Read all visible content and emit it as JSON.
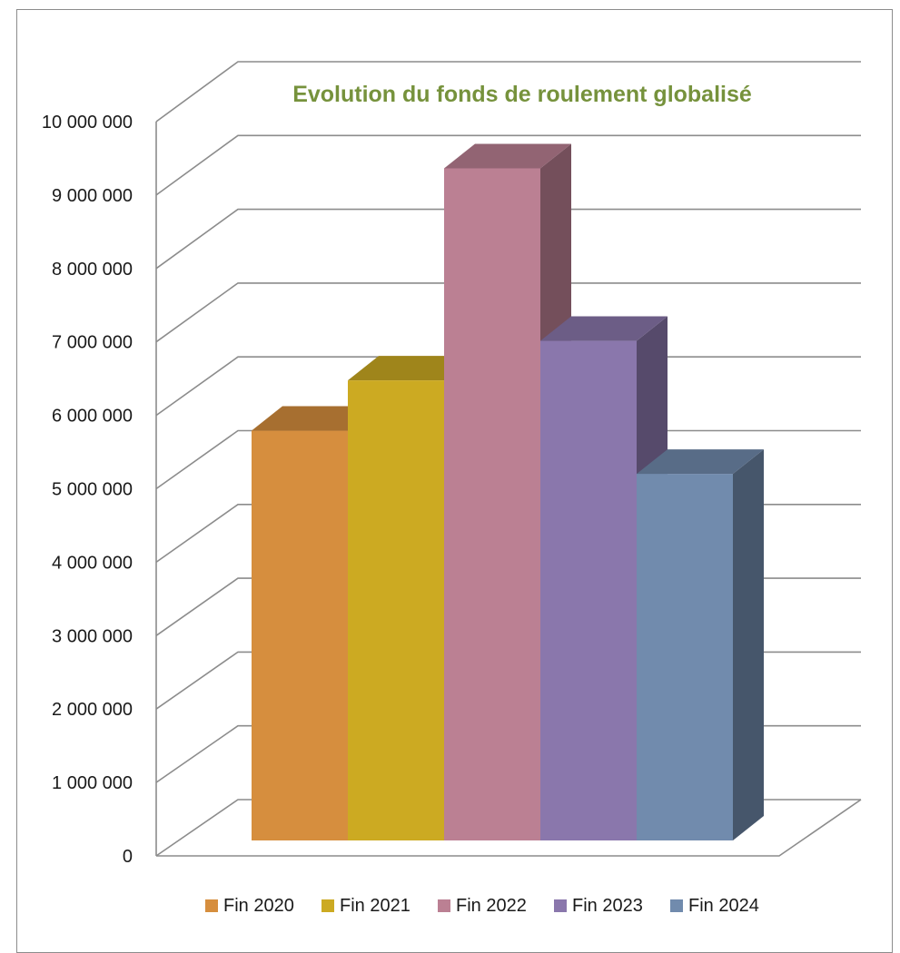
{
  "chart_data": {
    "type": "bar",
    "title": "Evolution du fonds de roulement  globalisé",
    "categories": [
      "Fin 2020",
      "Fin 2021",
      "Fin 2022",
      "Fin 2023",
      "Fin 2024"
    ],
    "values": [
      5700000,
      6400000,
      9350000,
      6950000,
      5100000
    ],
    "colors": [
      "#d68e3e",
      "#ccaa22",
      "#bb8093",
      "#8a77ac",
      "#718bad"
    ],
    "yticks": [
      "0",
      "1 000 000",
      "2 000 000",
      "3 000 000",
      "4 000 000",
      "5 000 000",
      "6 000 000",
      "7 000 000",
      "8 000 000",
      "9 000 000",
      "10 000 000"
    ],
    "ylim": [
      0,
      10000000
    ],
    "legend_position": "bottom",
    "grid": true,
    "three_d": true
  }
}
